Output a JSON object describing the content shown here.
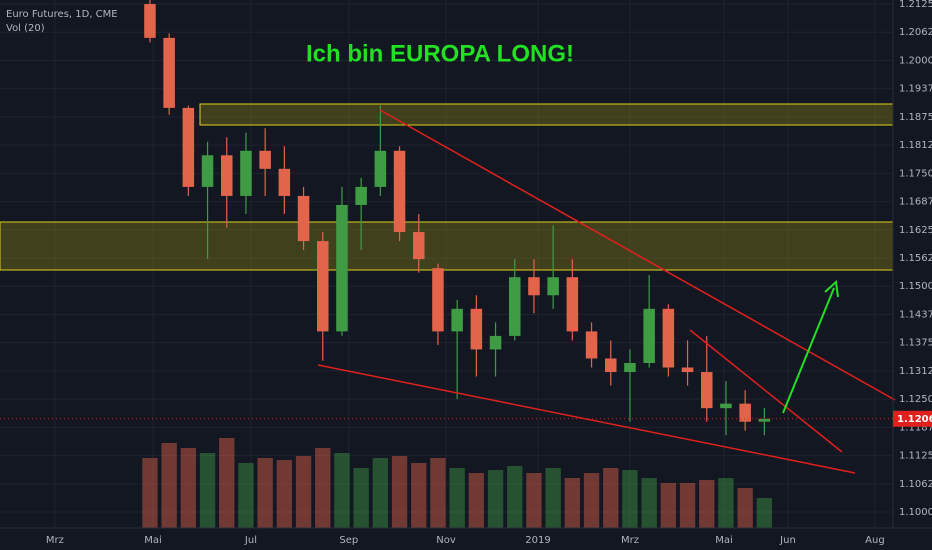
{
  "chart_data": {
    "type": "candlestick",
    "title": "Ich bin EUROPA LONG!",
    "symbol_label": "Euro Futures, 1D, CME",
    "volume_label": "Vol (20)",
    "categories": [
      null,
      null,
      null,
      null,
      null,
      null,
      null,
      null,
      null,
      null,
      null,
      null,
      null,
      null,
      null,
      null,
      null,
      null,
      null,
      null,
      null,
      null,
      null,
      null,
      null,
      null,
      null,
      null,
      null,
      null,
      null,
      null,
      null
    ],
    "open": [
      1.2125,
      1.205,
      1.1895,
      1.172,
      1.179,
      1.17,
      1.18,
      1.176,
      1.17,
      1.16,
      1.14,
      1.168,
      1.172,
      1.18,
      1.162,
      1.154,
      1.14,
      1.145,
      1.136,
      1.139,
      1.152,
      1.148,
      1.152,
      1.14,
      1.134,
      1.131,
      1.133,
      1.145,
      1.132,
      1.131,
      1.123,
      1.124,
      1.12
    ],
    "high": [
      1.2135,
      1.206,
      1.19,
      1.182,
      1.183,
      1.184,
      1.185,
      1.181,
      1.172,
      1.162,
      1.172,
      1.174,
      1.19,
      1.181,
      1.166,
      1.155,
      1.147,
      1.148,
      1.142,
      1.156,
      1.156,
      1.1635,
      1.156,
      1.142,
      1.138,
      1.136,
      1.1525,
      1.146,
      1.138,
      1.139,
      1.129,
      1.127,
      1.123
    ],
    "low": [
      1.204,
      1.188,
      1.17,
      1.156,
      1.163,
      1.166,
      1.17,
      1.166,
      1.158,
      1.1335,
      1.139,
      1.158,
      1.17,
      1.16,
      1.153,
      1.137,
      1.125,
      1.13,
      1.13,
      1.138,
      1.144,
      1.145,
      1.138,
      1.132,
      1.128,
      1.12,
      1.132,
      1.13,
      1.128,
      1.12,
      1.117,
      1.118,
      1.117
    ],
    "close": [
      1.205,
      1.1895,
      1.172,
      1.179,
      1.17,
      1.18,
      1.176,
      1.17,
      1.16,
      1.14,
      1.168,
      1.172,
      1.18,
      1.162,
      1.156,
      1.14,
      1.145,
      1.136,
      1.139,
      1.152,
      1.148,
      1.152,
      1.14,
      1.134,
      1.131,
      1.133,
      1.145,
      1.132,
      1.131,
      1.123,
      1.124,
      1.12,
      1.12065
    ],
    "volume": [
      70,
      85,
      80,
      75,
      90,
      65,
      70,
      68,
      72,
      80,
      75,
      60,
      70,
      72,
      65,
      70,
      60,
      55,
      58,
      62,
      55,
      60,
      50,
      55,
      60,
      58,
      50,
      45,
      45,
      48,
      50,
      40,
      30
    ],
    "up_color": "#3f9c45",
    "down_color": "#e2644a",
    "xlim": [
      -7.81,
      38.7
    ],
    "xticks": [
      {
        "value": -4.95,
        "label": "Mrz"
      },
      {
        "value": 0.16,
        "label": "Mai"
      },
      {
        "value": 5.26,
        "label": "Jul"
      },
      {
        "value": 10.36,
        "label": "Sep"
      },
      {
        "value": 15.42,
        "label": "Nov"
      },
      {
        "value": 20.21,
        "label": "2019"
      },
      {
        "value": 25,
        "label": "Mrz"
      },
      {
        "value": 29.9,
        "label": "Mai"
      },
      {
        "value": 33.23,
        "label": "Jun"
      },
      {
        "value": 37.76,
        "label": "Aug"
      }
    ],
    "ylim": [
      1.09646,
      1.21339
    ],
    "yticks": [
      {
        "value": 1.1,
        "label": "1.10000"
      },
      1.10625,
      {
        "value": 1.1125,
        "label": "1.11250"
      },
      1.11875,
      {
        "value": 1.125,
        "label": "1.12500"
      },
      1.13125,
      {
        "value": 1.1375,
        "label": "1.13750"
      },
      1.14375,
      {
        "value": 1.15,
        "label": "1.15000"
      },
      1.15625,
      {
        "value": 1.1625,
        "label": "1.16250"
      },
      1.16875,
      {
        "value": 1.175,
        "label": "1.17500"
      },
      1.18125,
      {
        "value": 1.1875,
        "label": "1.18750"
      },
      1.19375,
      {
        "value": 1.2,
        "label": "1.20000"
      },
      1.20625,
      {
        "value": 1.2125,
        "label": "1.21250"
      }
    ],
    "grid": true
  }
}
